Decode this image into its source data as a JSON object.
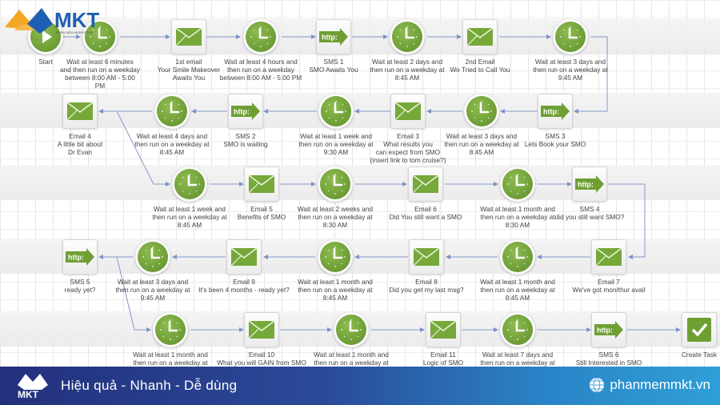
{
  "brand": {
    "logo_text": "MKT",
    "logo_subtitle": "PHẦN MỀM MARKETING",
    "colors": {
      "orange": "#f5a623",
      "blue": "#1e5fb3",
      "green": "#6a9e34"
    }
  },
  "workflow": {
    "rows": [
      {
        "direction": "right",
        "nodes": [
          {
            "type": "start",
            "label": "Start"
          },
          {
            "type": "wait",
            "label": "Wait at least 6 minutes\nand then run on a weekday\nbetween 8:00 AM - 5:00\nPM"
          },
          {
            "type": "email",
            "label": "1st email\nYour Smile Makeover\nAwaits You"
          },
          {
            "type": "wait",
            "label": "Wait at least 4 hours and\nthen run on a weekday\nbetween 8:00 AM - 5:00 PM"
          },
          {
            "type": "sms",
            "label": "SMS 1\nSMO Awaits You"
          },
          {
            "type": "wait",
            "label": "Wait at least 2 days and\nthen run on a weekday at\n8:45 AM"
          },
          {
            "type": "email",
            "label": "2nd Email\nWo Tried to Call You"
          },
          {
            "type": "wait",
            "label": "Wait at least 3 days and\nthen run on a weekday at\n9:45 AM"
          }
        ]
      },
      {
        "direction": "left",
        "nodes": [
          {
            "type": "email",
            "label": "Email 4\nA little bit about\nDr Evan"
          },
          {
            "type": "wait",
            "label": "Wait at least 4 days and\nthen run on a weekday at\n8:45 AM"
          },
          {
            "type": "sms",
            "label": "SMS 2\nSMO is waiting"
          },
          {
            "type": "wait",
            "label": "Wait at least 1 week and\nthen run on a weekday at\n9:30 AM"
          },
          {
            "type": "email",
            "label": "Email 3\nWhat results you\ncan expect from SMO\n(insert link to tom cruise?)"
          },
          {
            "type": "wait",
            "label": "Wait at least 3 days and\nthen run on a weekday at\n8:45 AM"
          },
          {
            "type": "sms",
            "label": "SMS 3\nLets Book your SMO"
          }
        ]
      },
      {
        "direction": "right",
        "nodes": [
          {
            "type": "wait",
            "label": "Wait at least 1 week and\nthen run on a weekday at\n8:45 AM"
          },
          {
            "type": "email",
            "label": "Email 5\nBenefits of SMO"
          },
          {
            "type": "wait",
            "label": "Wait at least 2 weeks and\nthen run on a weekday at\n8:30 AM"
          },
          {
            "type": "email",
            "label": "Email 6\nDid You still want a SMO"
          },
          {
            "type": "wait",
            "label": "Wait at least 1 month and\nthen run on a weekday at\n8:30 AM"
          },
          {
            "type": "sms",
            "label": "SMS 4\ndid you still want SMO?"
          }
        ]
      },
      {
        "direction": "left",
        "nodes": [
          {
            "type": "sms",
            "label": "SMS 5\nready yet?"
          },
          {
            "type": "wait",
            "label": "Wait at least 3 days and\nthen run on a weekday at\n9:45 AM"
          },
          {
            "type": "email",
            "label": "Email 9\nIt's been 4 months - ready yet?"
          },
          {
            "type": "wait",
            "label": "Wait at least 1 month and\nthen run on a weekday at\n8:45 AM"
          },
          {
            "type": "email",
            "label": "Email 8\nDid you get my last msg?"
          },
          {
            "type": "wait",
            "label": "Wait at least 1 month and\nthen run on a weekday at\n8:45 AM"
          },
          {
            "type": "email",
            "label": "Email 7\nWe've got mon/thur avail"
          }
        ]
      },
      {
        "direction": "right",
        "nodes": [
          {
            "type": "wait",
            "label": "Wait at least 1 month and\nthen run on a weekday at"
          },
          {
            "type": "email",
            "label": "Email 10\nWhat you will GAIN from SMO"
          },
          {
            "type": "wait",
            "label": "Wait at least 1 month and\nthen run on a weekday at"
          },
          {
            "type": "email",
            "label": "Email 11\nLogic of SMO"
          },
          {
            "type": "wait",
            "label": "Wait at least 7 days and\nthen run on a weekday at"
          },
          {
            "type": "sms",
            "label": "SMS 6\nStill Interested in SMO"
          },
          {
            "type": "task",
            "label": "Create Task"
          }
        ]
      }
    ]
  },
  "footer": {
    "logo_text": "MKT",
    "slogan": "Hiệu quả - Nhanh  - Dễ dùng",
    "website": "phanmemmkt.vn"
  }
}
